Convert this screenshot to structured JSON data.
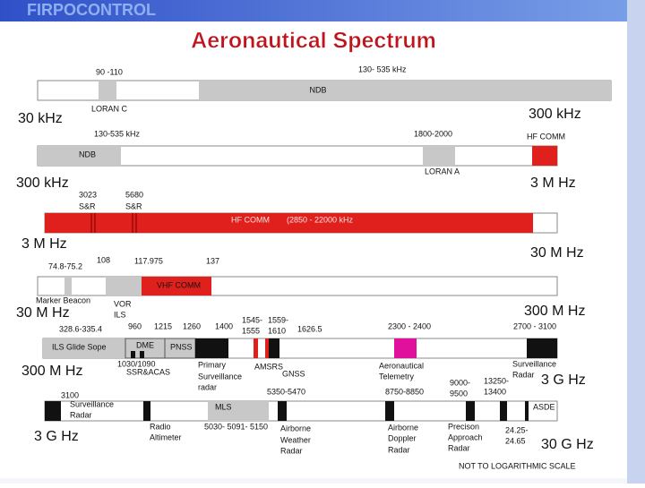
{
  "header": {
    "banner": "FIRPOCONTROL",
    "title": "Aeronautical Spectrum"
  },
  "bands": [
    {
      "labels": [
        "90 -110",
        "130- 535 kHz",
        "NDB",
        "LORAN C",
        "30 kHz",
        "300 kHz"
      ]
    },
    {
      "labels": [
        "130-535 kHz",
        "1800-2000",
        "NDB",
        "HF COMM",
        "LORAN A",
        "300 kHz",
        "3 M Hz"
      ]
    },
    {
      "labels": [
        "3023",
        "S&R",
        "5680",
        "S&R",
        "HF COMM",
        "(2850 - 22000 kHz",
        "3 M Hz",
        "30 M Hz"
      ]
    },
    {
      "labels": [
        "108",
        "117.975",
        "137",
        "74.8-75.2",
        "VHF COMM",
        "Marker Beacon",
        "VOR",
        "ILS",
        "30 M Hz",
        "300 M Hz"
      ]
    },
    {
      "labels": [
        "328.6-335.4",
        "960",
        "1215",
        "1260",
        "1400",
        "1545-",
        "1555",
        "1559-",
        "1610",
        "1626.5",
        "2300 - 2400",
        "2700 - 3100",
        "ILS Glide Sope",
        "DME",
        "PNSS",
        "1030/1090",
        "SSR&ACAS",
        "Primary",
        "Surveillance",
        "radar",
        "AMSRS",
        "GNSS",
        "Aeronautical",
        "Telemetry",
        "Surveillance",
        "Radar",
        "300 M Hz",
        "3 G Hz"
      ]
    },
    {
      "labels": [
        "3100",
        "Surveillance",
        "Radar",
        "MLS",
        "5350-5470",
        "8750-8850",
        "9000-",
        "9500",
        "13250-",
        "13400",
        "ASDE",
        "Radio",
        "Altimeter",
        "5030- 5091- 5150",
        "Airborne",
        "Weather",
        "Radar",
        "Airborne",
        "Doppler",
        "Radar",
        "Precison",
        "Approach",
        "Radar",
        "24.25-",
        "24.65",
        "3 G Hz",
        "30 G Hz",
        "NOT TO LOGARITHMIC SCALE"
      ]
    }
  ]
}
